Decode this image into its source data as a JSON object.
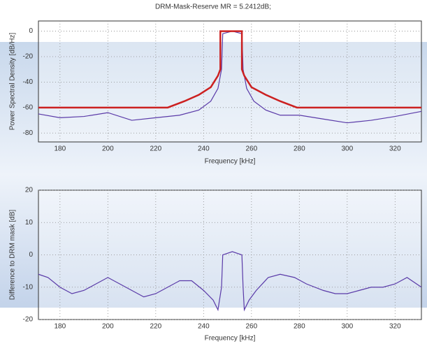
{
  "chart_data": [
    {
      "type": "line",
      "title": "DRM-Mask-Reserve MR = 5.2412dB;",
      "xlabel": "Frequency [kHz]",
      "ylabel": "Power Spectral Density [dB/Hz]",
      "xlim": [
        171,
        331
      ],
      "ylim": [
        -87,
        8
      ],
      "xticks": [
        180,
        200,
        220,
        240,
        260,
        280,
        300,
        320
      ],
      "yticks": [
        0,
        -20,
        -40,
        -60,
        -80
      ],
      "grid": true,
      "series": [
        {
          "color": "#5a3aa8",
          "x": [
            171,
            180,
            190,
            200,
            210,
            220,
            230,
            238,
            243,
            246,
            247.5,
            248,
            252,
            256,
            256.5,
            258,
            261,
            266,
            272,
            280,
            290,
            300,
            310,
            320,
            331
          ],
          "values": [
            -65,
            -68,
            -67,
            -64,
            -70,
            -68,
            -66,
            -62,
            -55,
            -45,
            -30,
            -2,
            0,
            -2,
            -30,
            -45,
            -55,
            -62,
            -66,
            -66,
            -69,
            -72,
            -70,
            -67,
            -63
          ]
        },
        {
          "color": "#cc2020",
          "x": [
            171,
            225,
            232,
            238,
            243,
            246,
            247,
            247,
            256,
            256,
            257,
            260,
            266,
            272,
            279,
            331
          ],
          "values": [
            -60,
            -60,
            -55,
            -50,
            -44,
            -35,
            -30,
            0,
            0,
            -30,
            -35,
            -44,
            -50,
            -55,
            -60,
            -60
          ]
        }
      ]
    },
    {
      "type": "line",
      "xlabel": "Frequency [kHz]",
      "ylabel": "Difference to DRM mask [dB]",
      "xlim": [
        171,
        331
      ],
      "ylim": [
        -20,
        20
      ],
      "xticks": [
        180,
        200,
        220,
        240,
        260,
        280,
        300,
        320
      ],
      "yticks": [
        -20,
        -10,
        0,
        10,
        20
      ],
      "grid": true,
      "series": [
        {
          "color": "#5a3aa8",
          "x": [
            171,
            175,
            180,
            185,
            190,
            195,
            200,
            205,
            210,
            215,
            220,
            225,
            230,
            235,
            240,
            244,
            246,
            247.5,
            248,
            252,
            256,
            256.5,
            257,
            259,
            262,
            267,
            272,
            278,
            283,
            290,
            295,
            300,
            305,
            310,
            315,
            320,
            325,
            331
          ],
          "values": [
            -6,
            -7,
            -10,
            -12,
            -11,
            -9,
            -7,
            -9,
            -11,
            -13,
            -12,
            -10,
            -8,
            -8,
            -11,
            -14,
            -17,
            -10,
            0,
            1,
            0,
            -10,
            -17,
            -14,
            -11,
            -7,
            -6,
            -7,
            -9,
            -11,
            -12,
            -12,
            -11,
            -10,
            -10,
            -9,
            -7,
            -10
          ]
        }
      ]
    }
  ]
}
